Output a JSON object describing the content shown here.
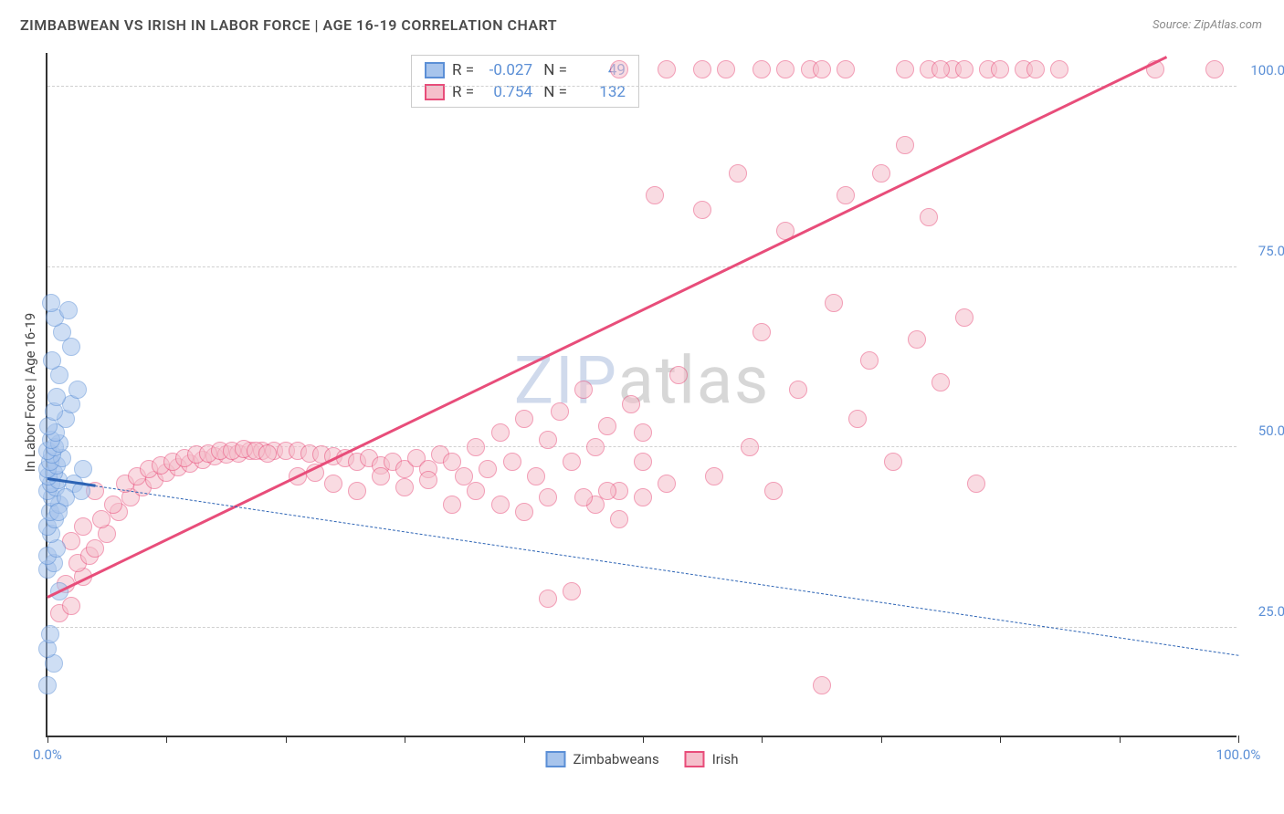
{
  "title": "ZIMBABWEAN VS IRISH IN LABOR FORCE | AGE 16-19 CORRELATION CHART",
  "source": "Source: ZipAtlas.com",
  "ylabel": "In Labor Force | Age 16-19",
  "watermark": {
    "part1": "ZIP",
    "part2": "atlas"
  },
  "chart": {
    "type": "scatter",
    "background_color": "#ffffff",
    "grid_color": "#d0d0d0",
    "axis_color": "#333333",
    "xlim": [
      0,
      100
    ],
    "ylim": [
      10,
      105
    ],
    "xtick_positions": [
      0,
      10,
      20,
      30,
      40,
      50,
      60,
      70,
      80,
      90,
      100
    ],
    "xtick_labels": {
      "0": "0.0%",
      "100": "100.0%"
    },
    "ytick_positions": [
      25,
      50,
      75,
      100
    ],
    "ytick_labels": {
      "25": "25.0%",
      "50": "50.0%",
      "75": "75.0%",
      "100": "100.0%"
    },
    "marker_radius": 10,
    "marker_opacity": 0.55,
    "label_fontsize": 15,
    "tick_color": "#5b8fd6"
  },
  "series": {
    "zimbabweans": {
      "label": "Zimbabweans",
      "fill_color": "#a7c4ec",
      "stroke_color": "#5b8fd6",
      "R": "-0.027",
      "N": "49",
      "trend": {
        "x1": 0,
        "y1": 45.5,
        "x2": 100,
        "y2": 21,
        "style": "solid_then_dashed",
        "solid_until_x": 4,
        "color": "#2d64b5"
      },
      "points": [
        [
          0,
          17
        ],
        [
          0.5,
          20
        ],
        [
          0,
          22
        ],
        [
          0.2,
          24
        ],
        [
          1,
          30
        ],
        [
          0,
          33
        ],
        [
          0.5,
          34
        ],
        [
          0,
          35
        ],
        [
          0.8,
          36
        ],
        [
          0.3,
          38
        ],
        [
          0,
          39
        ],
        [
          0.6,
          40
        ],
        [
          0.2,
          41
        ],
        [
          1,
          42
        ],
        [
          0.4,
          43
        ],
        [
          0,
          44
        ],
        [
          0.7,
          44.5
        ],
        [
          0.3,
          45
        ],
        [
          0.9,
          45.5
        ],
        [
          0.1,
          46
        ],
        [
          0.5,
          46.5
        ],
        [
          0,
          47
        ],
        [
          0.8,
          47.5
        ],
        [
          0.2,
          48
        ],
        [
          1.2,
          48.5
        ],
        [
          0.4,
          49
        ],
        [
          0,
          49.5
        ],
        [
          0.6,
          50
        ],
        [
          1,
          50.5
        ],
        [
          0.3,
          51
        ],
        [
          0.7,
          52
        ],
        [
          0.1,
          53
        ],
        [
          1.5,
          54
        ],
        [
          0.5,
          55
        ],
        [
          2,
          56
        ],
        [
          0.8,
          57
        ],
        [
          2.5,
          58
        ],
        [
          1,
          60
        ],
        [
          0.4,
          62
        ],
        [
          2,
          64
        ],
        [
          1.2,
          66
        ],
        [
          0.6,
          68
        ],
        [
          1.8,
          69
        ],
        [
          0.3,
          70
        ],
        [
          2.2,
          45
        ],
        [
          3,
          47
        ],
        [
          1.5,
          43
        ],
        [
          2.8,
          44
        ],
        [
          0.9,
          41
        ]
      ]
    },
    "irish": {
      "label": "Irish",
      "fill_color": "#f5bfcb",
      "stroke_color": "#e84d7a",
      "R": "0.754",
      "N": "132",
      "trend": {
        "x1": 0,
        "y1": 29,
        "x2": 94,
        "y2": 104,
        "style": "solid",
        "color": "#e84d7a"
      },
      "points": [
        [
          1,
          27
        ],
        [
          2,
          28
        ],
        [
          1.5,
          31
        ],
        [
          3,
          32
        ],
        [
          2.5,
          34
        ],
        [
          3.5,
          35
        ],
        [
          4,
          36
        ],
        [
          2,
          37
        ],
        [
          5,
          38
        ],
        [
          3,
          39
        ],
        [
          4.5,
          40
        ],
        [
          6,
          41
        ],
        [
          5.5,
          42
        ],
        [
          7,
          43
        ],
        [
          4,
          44
        ],
        [
          8,
          44.5
        ],
        [
          6.5,
          45
        ],
        [
          9,
          45.5
        ],
        [
          7.5,
          46
        ],
        [
          10,
          46.5
        ],
        [
          8.5,
          47
        ],
        [
          11,
          47.2
        ],
        [
          9.5,
          47.5
        ],
        [
          12,
          47.8
        ],
        [
          10.5,
          48
        ],
        [
          13,
          48.2
        ],
        [
          11.5,
          48.5
        ],
        [
          14,
          48.8
        ],
        [
          12.5,
          49
        ],
        [
          15,
          49
        ],
        [
          13.5,
          49.2
        ],
        [
          16,
          49.2
        ],
        [
          14.5,
          49.5
        ],
        [
          17,
          49.5
        ],
        [
          15.5,
          49.5
        ],
        [
          18,
          49.5
        ],
        [
          16.5,
          49.8
        ],
        [
          19,
          49.5
        ],
        [
          17.5,
          49.5
        ],
        [
          20,
          49.5
        ],
        [
          18.5,
          49.2
        ],
        [
          21,
          49.5
        ],
        [
          22,
          49.2
        ],
        [
          23,
          49
        ],
        [
          24,
          48.8
        ],
        [
          25,
          48.5
        ],
        [
          26,
          48
        ],
        [
          27,
          48.5
        ],
        [
          28,
          47.5
        ],
        [
          29,
          48
        ],
        [
          30,
          47
        ],
        [
          31,
          48.5
        ],
        [
          32,
          47
        ],
        [
          33,
          49
        ],
        [
          21,
          46
        ],
        [
          22.5,
          46.5
        ],
        [
          24,
          45
        ],
        [
          26,
          44
        ],
        [
          28,
          46
        ],
        [
          30,
          44.5
        ],
        [
          32,
          45.5
        ],
        [
          34,
          48
        ],
        [
          35,
          46
        ],
        [
          36,
          50
        ],
        [
          37,
          47
        ],
        [
          38,
          52
        ],
        [
          39,
          48
        ],
        [
          40,
          54
        ],
        [
          41,
          46
        ],
        [
          42,
          51
        ],
        [
          43,
          55
        ],
        [
          44,
          48
        ],
        [
          45,
          58
        ],
        [
          46,
          50
        ],
        [
          47,
          53
        ],
        [
          48,
          44
        ],
        [
          49,
          56
        ],
        [
          50,
          48
        ],
        [
          42,
          29
        ],
        [
          44,
          30
        ],
        [
          46,
          42
        ],
        [
          48,
          40
        ],
        [
          50,
          43
        ],
        [
          52,
          45
        ],
        [
          51,
          85
        ],
        [
          53,
          60
        ],
        [
          55,
          83
        ],
        [
          56,
          46
        ],
        [
          58,
          88
        ],
        [
          59,
          50
        ],
        [
          60,
          66
        ],
        [
          61,
          44
        ],
        [
          62,
          80
        ],
        [
          63,
          58
        ],
        [
          65,
          17
        ],
        [
          66,
          70
        ],
        [
          67,
          85
        ],
        [
          68,
          54
        ],
        [
          69,
          62
        ],
        [
          70,
          88
        ],
        [
          71,
          48
        ],
        [
          72,
          92
        ],
        [
          73,
          65
        ],
        [
          74,
          82
        ],
        [
          75,
          59
        ],
        [
          76,
          102.5
        ],
        [
          77,
          68
        ],
        [
          78,
          45
        ],
        [
          60,
          102.5
        ],
        [
          62,
          102.5
        ],
        [
          64,
          102.5
        ],
        [
          65,
          102.5
        ],
        [
          67,
          102.5
        ],
        [
          72,
          102.5
        ],
        [
          74,
          102.5
        ],
        [
          75,
          102.5
        ],
        [
          77,
          102.5
        ],
        [
          79,
          102.5
        ],
        [
          80,
          102.5
        ],
        [
          82,
          102.5
        ],
        [
          83,
          102.5
        ],
        [
          85,
          102.5
        ],
        [
          93,
          102.5
        ],
        [
          98,
          102.5
        ],
        [
          57,
          102.5
        ],
        [
          55,
          102.5
        ],
        [
          52,
          102.5
        ],
        [
          48,
          102.5
        ],
        [
          38,
          42
        ],
        [
          40,
          41
        ],
        [
          42,
          43
        ],
        [
          36,
          44
        ],
        [
          34,
          42
        ],
        [
          45,
          43
        ],
        [
          47,
          44
        ],
        [
          50,
          52
        ]
      ]
    }
  },
  "legend": {
    "items": [
      {
        "label": "Zimbabweans",
        "fill": "#a7c4ec",
        "stroke": "#5b8fd6"
      },
      {
        "label": "Irish",
        "fill": "#f5bfcb",
        "stroke": "#e84d7a"
      }
    ]
  }
}
